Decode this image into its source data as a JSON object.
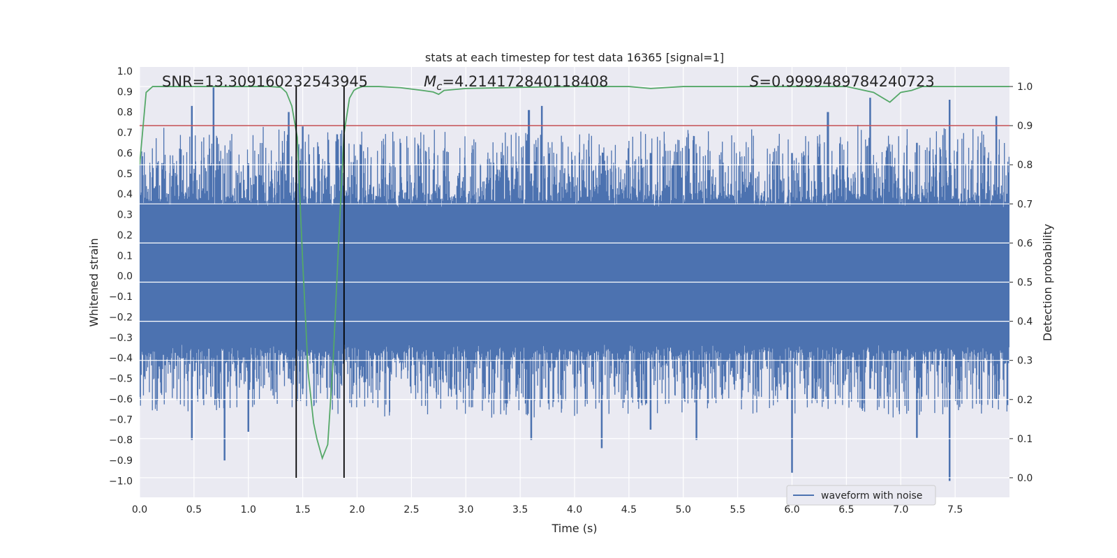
{
  "chart_data": {
    "type": "line",
    "title": "stats at each timestep for test data 16365 [signal=1]",
    "xlabel": "Time (s)",
    "ylabel": "Whitened strain",
    "y2label": "Detection probability",
    "xlim": [
      0.0,
      8.0
    ],
    "ylim": [
      -1.08,
      1.02
    ],
    "y2lim": [
      -0.05,
      1.05
    ],
    "x_ticks": [
      0.0,
      0.5,
      1.0,
      1.5,
      2.0,
      2.5,
      3.0,
      3.5,
      4.0,
      4.5,
      5.0,
      5.5,
      6.0,
      6.5,
      7.0,
      7.5
    ],
    "x_tick_labels": [
      "0.0",
      "0.5",
      "1.0",
      "1.5",
      "2.0",
      "2.5",
      "3.0",
      "3.5",
      "4.0",
      "4.5",
      "5.0",
      "5.5",
      "6.0",
      "6.5",
      "7.0",
      "7.5"
    ],
    "y_ticks": [
      -1.0,
      -0.9,
      -0.8,
      -0.7,
      -0.6,
      -0.5,
      -0.4,
      -0.3,
      -0.2,
      -0.1,
      0.0,
      0.1,
      0.2,
      0.3,
      0.4,
      0.5,
      0.6,
      0.7,
      0.8,
      0.9,
      1.0
    ],
    "y_tick_labels": [
      "−1.0",
      "−0.9",
      "−0.8",
      "−0.7",
      "−0.6",
      "−0.5",
      "−0.4",
      "−0.3",
      "−0.2",
      "−0.1",
      "0.0",
      "0.1",
      "0.2",
      "0.3",
      "0.4",
      "0.5",
      "0.6",
      "0.7",
      "0.8",
      "0.9",
      "1.0"
    ],
    "y2_ticks": [
      0.0,
      0.1,
      0.2,
      0.3,
      0.4,
      0.5,
      0.6,
      0.7,
      0.8,
      0.9,
      1.0
    ],
    "y2_tick_labels": [
      "0.0",
      "0.1",
      "0.2",
      "0.3",
      "0.4",
      "0.5",
      "0.6",
      "0.7",
      "0.8",
      "0.9",
      "1.0"
    ],
    "annotations": {
      "snr": "SNR=13.309160232543945",
      "mc_symbol": "M",
      "mc_sub": "c",
      "mc_value": "=4.214172840118408",
      "s_symbol": "S",
      "s_value": "=0.9999489784240723"
    },
    "threshold": 0.9,
    "event_window": [
      1.44,
      1.88
    ],
    "strain_envelope": {
      "samples": 2048,
      "seed": 16365,
      "base_amplitude": 0.33,
      "spikes": [
        {
          "t": 0.68,
          "upper": 0.92,
          "lower": -0.4
        },
        {
          "t": 0.48,
          "upper": 0.83,
          "lower": -0.8
        },
        {
          "t": 0.78,
          "upper": 0.5,
          "lower": -0.9
        },
        {
          "t": 1.0,
          "upper": 0.55,
          "lower": -0.76
        },
        {
          "t": 1.37,
          "upper": 0.8,
          "lower": -0.5
        },
        {
          "t": 1.5,
          "upper": 0.73,
          "lower": -0.55
        },
        {
          "t": 3.58,
          "upper": 0.81,
          "lower": -0.6
        },
        {
          "t": 3.7,
          "upper": 0.83,
          "lower": -0.6
        },
        {
          "t": 3.6,
          "upper": 0.5,
          "lower": -0.8
        },
        {
          "t": 4.25,
          "upper": 0.5,
          "lower": -0.84
        },
        {
          "t": 4.7,
          "upper": 0.6,
          "lower": -0.75
        },
        {
          "t": 5.12,
          "upper": 0.6,
          "lower": -0.8
        },
        {
          "t": 6.0,
          "upper": 0.6,
          "lower": -0.96
        },
        {
          "t": 6.33,
          "upper": 0.8,
          "lower": -0.6
        },
        {
          "t": 6.72,
          "upper": 0.87,
          "lower": -0.55
        },
        {
          "t": 7.15,
          "upper": 0.65,
          "lower": -0.79
        },
        {
          "t": 7.45,
          "upper": 0.86,
          "lower": -1.0
        },
        {
          "t": 7.88,
          "upper": 0.78,
          "lower": -0.6
        }
      ]
    },
    "series": [
      {
        "name": "waveform with noise",
        "axis": "left",
        "color": "#4c72b0",
        "representation": "dense noise trace with envelope from strain_envelope"
      },
      {
        "name": "detection probability",
        "axis": "right",
        "color": "#55a868",
        "x": [
          0.0,
          0.06,
          0.12,
          0.2,
          0.4,
          0.6,
          0.8,
          1.0,
          1.2,
          1.3,
          1.35,
          1.4,
          1.45,
          1.5,
          1.55,
          1.6,
          1.63,
          1.68,
          1.73,
          1.78,
          1.83,
          1.88,
          1.93,
          1.97,
          2.0,
          2.05,
          2.2,
          2.4,
          2.6,
          2.7,
          2.75,
          2.8,
          3.0,
          3.5,
          4.0,
          4.5,
          4.7,
          5.0,
          5.5,
          6.0,
          6.5,
          6.75,
          6.9,
          7.0,
          7.1,
          7.2,
          7.5,
          8.0
        ],
        "y": [
          0.8,
          0.985,
          1.0,
          1.0,
          1.0,
          1.0,
          1.0,
          1.0,
          1.0,
          0.998,
          0.985,
          0.95,
          0.87,
          0.55,
          0.27,
          0.14,
          0.1,
          0.05,
          0.085,
          0.3,
          0.6,
          0.88,
          0.97,
          0.99,
          0.995,
          1.0,
          1.0,
          0.997,
          0.99,
          0.986,
          0.98,
          0.99,
          0.995,
          0.998,
          1.0,
          1.0,
          0.995,
          1.0,
          1.0,
          1.0,
          1.0,
          0.985,
          0.96,
          0.985,
          0.99,
          1.0,
          1.0,
          1.0
        ]
      },
      {
        "name": "threshold",
        "axis": "right",
        "color": "#c44e52",
        "y_const": 0.9
      }
    ],
    "legend": {
      "position": "lower-right",
      "entries": [
        {
          "label": "waveform with noise",
          "color": "#4c72b0"
        }
      ]
    },
    "grid": true
  }
}
